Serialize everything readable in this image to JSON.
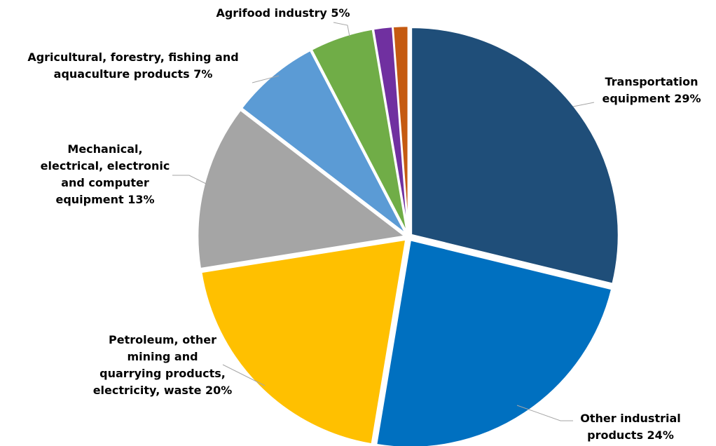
{
  "chart_data": {
    "type": "pie",
    "title": "",
    "legend": "none",
    "slices": [
      {
        "label_lines": [
          "Transportation",
          "equipment 29%"
        ],
        "value": 29,
        "color": "#1f4e79"
      },
      {
        "label_lines": [
          "Other industrial",
          "products 24%"
        ],
        "value": 24,
        "color": "#0070c0"
      },
      {
        "label_lines": [
          "Petroleum, other",
          "mining and",
          "quarrying products,",
          "electricity, waste 20%"
        ],
        "value": 20,
        "color": "#ffc000"
      },
      {
        "label_lines": [
          "Mechanical,",
          "electrical, electronic",
          "and computer",
          "equipment 13%"
        ],
        "value": 13,
        "color": "#a5a5a5"
      },
      {
        "label_lines": [
          "Agricultural, forestry, fishing and",
          "aquaculture products 7%"
        ],
        "value": 7,
        "color": "#5b9bd5"
      },
      {
        "label_lines": [
          "Agrifood industry 5%"
        ],
        "value": 5,
        "color": "#70ad47"
      },
      {
        "label_lines": [],
        "value": 1.5,
        "color": "#7030a0"
      },
      {
        "label_lines": [],
        "value": 1.2,
        "color": "#c55a11"
      }
    ]
  }
}
